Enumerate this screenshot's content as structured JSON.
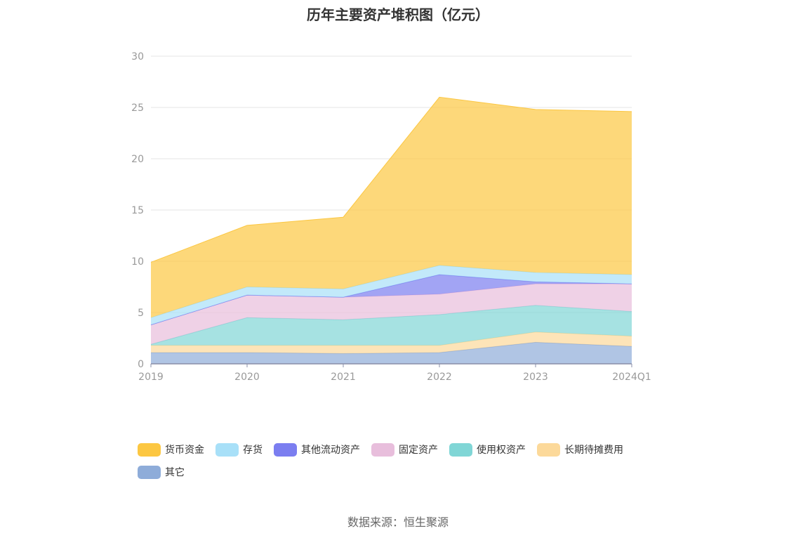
{
  "chart_data": {
    "type": "area",
    "stacked": true,
    "title": "历年主要资产堆积图（亿元）",
    "xlabel": "",
    "ylabel": "",
    "categories": [
      "2019",
      "2020",
      "2021",
      "2022",
      "2023",
      "2024Q1"
    ],
    "ylim": [
      0,
      30
    ],
    "yticks": [
      0,
      5,
      10,
      15,
      20,
      25,
      30
    ],
    "grid": true,
    "legend_position": "bottom",
    "series": [
      {
        "name": "其它",
        "color": "#8eacd9",
        "values": [
          1.1,
          1.1,
          1.0,
          1.1,
          2.1,
          1.7
        ]
      },
      {
        "name": "长期待摊费用",
        "color": "#fcd99a",
        "values": [
          0.7,
          0.7,
          0.8,
          0.7,
          1.0,
          1.0
        ]
      },
      {
        "name": "使用权资产",
        "color": "#80d6d6",
        "values": [
          0.1,
          2.7,
          2.5,
          3.0,
          2.6,
          2.4
        ]
      },
      {
        "name": "固定资产",
        "color": "#e8bedc",
        "values": [
          1.9,
          2.2,
          2.2,
          2.0,
          2.1,
          2.7
        ]
      },
      {
        "name": "其他流动资产",
        "color": "#7b7ef0",
        "values": [
          0.0,
          0.0,
          0.0,
          1.9,
          0.2,
          0.0
        ]
      },
      {
        "name": "存货",
        "color": "#a8e0f8",
        "values": [
          0.7,
          0.8,
          0.8,
          0.9,
          0.9,
          0.9
        ]
      },
      {
        "name": "货币资金",
        "color": "#fcc742",
        "values": [
          5.4,
          6.0,
          7.0,
          16.4,
          15.9,
          15.9
        ]
      }
    ]
  },
  "legend": {
    "items": [
      {
        "label": "货币资金",
        "color": "#fcc742"
      },
      {
        "label": "存货",
        "color": "#a8e0f8"
      },
      {
        "label": "其他流动资产",
        "color": "#7b7ef0"
      },
      {
        "label": "固定资产",
        "color": "#e8bedc"
      },
      {
        "label": "使用权资产",
        "color": "#80d6d6"
      },
      {
        "label": "长期待摊费用",
        "color": "#fcd99a"
      },
      {
        "label": "其它",
        "color": "#8eacd9"
      }
    ]
  },
  "source": "数据来源：恒生聚源"
}
